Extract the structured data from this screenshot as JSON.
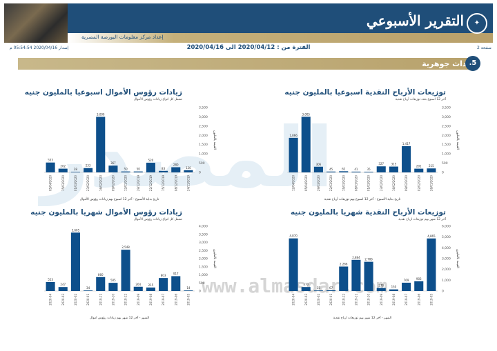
{
  "header": {
    "title": "التقرير الأسبوعي",
    "subtitle": "إعداد مركز معلومات البورصة المصرية",
    "page_label": "صفحة 2"
  },
  "info": {
    "period": "الفترة من : 2020/04/12 الى 2020/04/16",
    "issue": "إصدار 2020/04/16 05:54:54 م"
  },
  "section": {
    "number": ".5",
    "title": "أحداث جوهرية"
  },
  "watermark": {
    "word": "المصدر",
    "url": "www.almasdar.com"
  },
  "chart_data": [
    {
      "id": "weekly_dividends",
      "type": "bar",
      "title": "توزيعات الأرباح النقدية اسبوعيا بالمليون جنيه",
      "subtitle": "آخر 12 اسبوع بعدد توزيعات أرباح نقدية",
      "xlabel": "تاريخ بداية الأسبوع - آخر 12 اسبوع بهم توزيعات أرباح نقدية",
      "ylabel": "القيمة بالمليون",
      "ylim": [
        0,
        3500
      ],
      "yticks": [
        "0",
        "500",
        "1,000",
        "1,500",
        "2,000",
        "2,500",
        "3,000",
        "3,500"
      ],
      "color": "#0d4f8b",
      "categories": [
        "12/04/2020",
        "05/04/2020",
        "29/03/2020",
        "22/03/2020",
        "15/03/2020",
        "08/03/2020",
        "01/03/2020",
        "23/02/2020",
        "16/02/2020",
        "09/02/2020",
        "02/02/2020",
        "26/01/2020"
      ],
      "values": [
        1866,
        3005,
        306,
        45,
        62,
        41,
        35,
        327,
        315,
        1417,
        201,
        215
      ],
      "labels": [
        "1,866",
        "3,005",
        "306",
        "45",
        "62",
        "41",
        "35",
        "327",
        "315",
        "1,417",
        "201",
        "215"
      ]
    },
    {
      "id": "weekly_capital",
      "type": "bar",
      "title": "زيادات رؤوس الأموال اسبوعيا بالمليون جنيه",
      "subtitle": "تشمل كل انواع زيادات رؤوس الأموال",
      "xlabel": "تاريخ بداية الأسبوع - آخر 12 اسبوع بهم زيادات رؤوس الأموال",
      "ylabel": "القيمة بالمليون",
      "ylim": [
        0,
        3500
      ],
      "yticks": [
        "0",
        "500",
        "1,000",
        "1,500",
        "2,000",
        "2,500",
        "3,000",
        "3,500"
      ],
      "color": "#0d4f8b",
      "categories": [
        "05/04/2020",
        "15/03/2020",
        "01/03/2020",
        "23/02/2020",
        "16/02/2020",
        "09/02/2020",
        "12/01/2020",
        "29/12/2019",
        "22/12/2019",
        "15/12/2019",
        "08/12/2019",
        "24/11/2019"
      ],
      "values": [
        533,
        202,
        28,
        233,
        3000,
        367,
        50,
        50,
        520,
        83,
        280,
        120
      ],
      "labels": [
        "533",
        "202",
        "28",
        "233",
        "3,000",
        "367",
        "50",
        "50",
        "520",
        "83",
        "280",
        "120"
      ]
    },
    {
      "id": "monthly_dividends",
      "type": "bar",
      "title": "توزيعات الأرباح النقدية شهريا بالمليون جنيه",
      "subtitle": "آخر 12 شهر بهم توزيعات ارباح نقدية",
      "xlabel": "الشهر - آخر 12 شهر بهم توزيعات ارباح نقدية",
      "ylabel": "القيمة بالمليون",
      "ylim": [
        0,
        6000
      ],
      "yticks": [
        "0",
        "1,000",
        "2,000",
        "3,000",
        "4,000",
        "5,000",
        "6,000"
      ],
      "color": "#0d4f8b",
      "categories": [
        "2020-04",
        "2020-03",
        "2020-02",
        "2020-01",
        "2019-12",
        "2019-11",
        "2019-10",
        "2019-09",
        "2019-08",
        "2019-07",
        "2019-06",
        "2019-05"
      ],
      "values": [
        4870,
        370,
        35,
        67,
        2266,
        2884,
        2706,
        278,
        150,
        769,
        903,
        4865
      ],
      "labels": [
        "4,870",
        "370",
        "35",
        "67",
        "2,266",
        "2,884",
        "2,706",
        "278",
        "150",
        "769",
        "903",
        "4,865"
      ]
    },
    {
      "id": "monthly_capital",
      "type": "bar",
      "title": "زيادات رؤوس الأموال شهريا بالمليون جنيه",
      "subtitle": "تشمل كل انواع زيادات رؤوس الأموال",
      "xlabel": "الشهر - آخر 12 شهر بهم زيادات رؤوس اموال",
      "ylabel": "القيمة بالمليون",
      "ylim": [
        0,
        4000
      ],
      "yticks": [
        "0",
        "500",
        "1,000",
        "1,500",
        "2,000",
        "2,500",
        "3,000",
        "3,500",
        "4,000"
      ],
      "color": "#0d4f8b",
      "categories": [
        "2020-04",
        "2020-03",
        "2020-02",
        "2020-01",
        "2019-11",
        "2019-10",
        "2019-12",
        "2019-09",
        "2019-08",
        "2019-07",
        "2019-06",
        "2019-05"
      ],
      "values": [
        553,
        247,
        3605,
        34,
        860,
        505,
        2548,
        264,
        215,
        803,
        917,
        14
      ],
      "labels": [
        "553",
        "247",
        "3,605",
        "34",
        "860",
        "505",
        "2,548",
        "264",
        "215",
        "803",
        "917",
        "14"
      ]
    }
  ]
}
